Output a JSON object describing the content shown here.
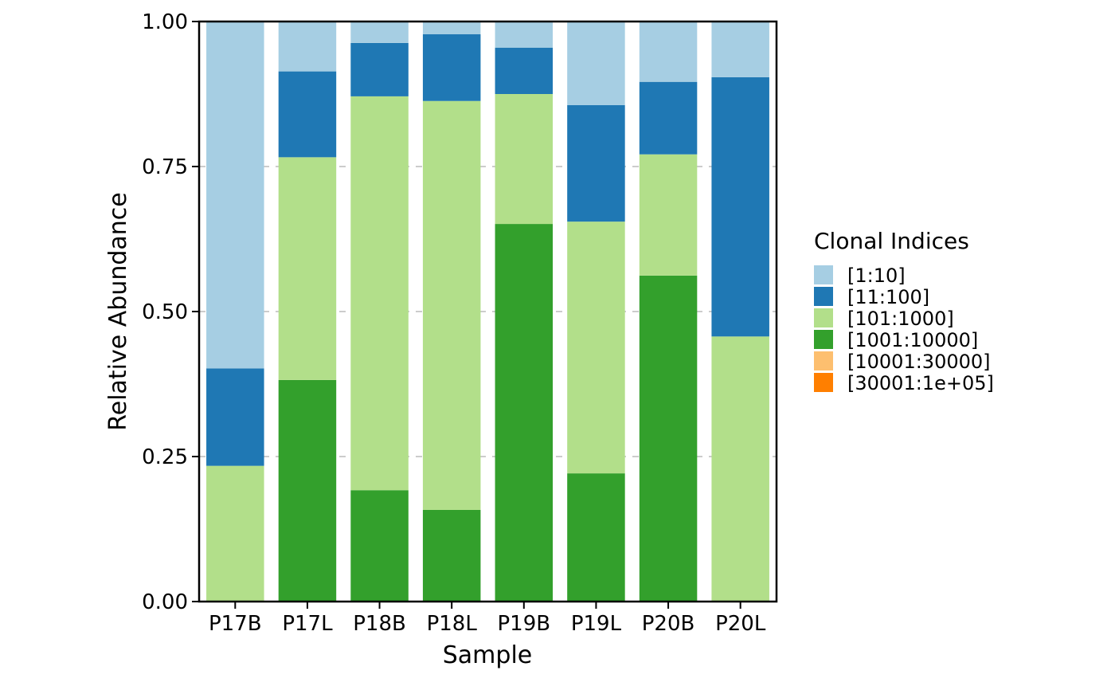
{
  "chart_data": {
    "type": "bar",
    "stacked": true,
    "xlabel": "Sample",
    "ylabel": "Relative Abundance",
    "ylim": [
      0,
      1
    ],
    "yticks": [
      "0.00",
      "0.25",
      "0.50",
      "0.75",
      "1.00"
    ],
    "grid": "horizontal dashed",
    "categories": [
      "P17B",
      "P17L",
      "P18B",
      "P18L",
      "P19B",
      "P19L",
      "P20B",
      "P20L"
    ],
    "legend": {
      "title": "Clonal Indices",
      "position": "right"
    },
    "series": [
      {
        "name": "[1:10]",
        "color": "#A6CEE3",
        "values": [
          0.598,
          0.086,
          0.037,
          0.022,
          0.045,
          0.144,
          0.104,
          0.096
        ]
      },
      {
        "name": "[11:100]",
        "color": "#1F78B4",
        "values": [
          0.168,
          0.148,
          0.092,
          0.115,
          0.08,
          0.201,
          0.125,
          0.447
        ]
      },
      {
        "name": "[101:1000]",
        "color": "#B2DF8A",
        "values": [
          0.234,
          0.384,
          0.679,
          0.705,
          0.224,
          0.434,
          0.209,
          0.457
        ]
      },
      {
        "name": "[1001:10000]",
        "color": "#33A02C",
        "values": [
          0,
          0.382,
          0.192,
          0.158,
          0.651,
          0.221,
          0.562,
          0
        ]
      },
      {
        "name": "[10001:30000]",
        "color": "#FDBF6F",
        "values": [
          0,
          0,
          0,
          0,
          0,
          0,
          0,
          0
        ]
      },
      {
        "name": "[30001:1e+05]",
        "color": "#FF7F00",
        "values": [
          0,
          0,
          0,
          0,
          0,
          0,
          0,
          0
        ]
      }
    ]
  }
}
